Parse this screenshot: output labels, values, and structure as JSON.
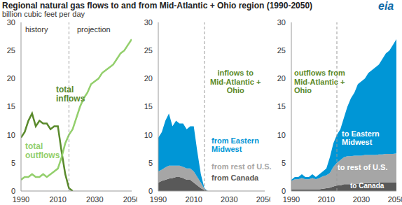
{
  "title": "Regional natural gas flows to and from Mid-Atlantic + Ohio region (1990-2050)",
  "subtitle": "billion cubic feet per day",
  "logo": "eia",
  "chart_data": [
    {
      "type": "line",
      "x": [
        1990,
        1992,
        1994,
        1996,
        1998,
        2000,
        2002,
        2004,
        2006,
        2008,
        2010,
        2012,
        2014,
        2016,
        2018,
        2020,
        2022,
        2024,
        2026,
        2028,
        2030,
        2032,
        2034,
        2036,
        2038,
        2040,
        2042,
        2044,
        2046,
        2048,
        2050
      ],
      "xlim": [
        1990,
        2050
      ],
      "xticks": [
        1990,
        2010,
        2030,
        2050
      ],
      "ylim": [
        0,
        30
      ],
      "yticks": [
        0,
        5,
        10,
        15,
        20,
        25,
        30
      ],
      "history_end": 2016,
      "annotations": [
        "history",
        "projection"
      ],
      "series": [
        {
          "name": "total\ninflows",
          "color": "#5a8a2c",
          "values": [
            9.5,
            10.5,
            12.5,
            13.8,
            11.5,
            12.5,
            12,
            12,
            11,
            11.5,
            11.5,
            7,
            3,
            0.5,
            0,
            null,
            null,
            null,
            null,
            null,
            null,
            null,
            null,
            null,
            null,
            null,
            null,
            null,
            null,
            null,
            null
          ]
        },
        {
          "name": "total\noutflows",
          "color": "#93cf6c",
          "values": [
            2,
            2.5,
            2.5,
            3,
            2.5,
            2.5,
            3,
            2.5,
            3,
            3.5,
            4,
            6,
            8.5,
            10,
            11,
            13,
            15,
            16.5,
            17.5,
            19,
            19.5,
            20,
            21,
            21.5,
            22,
            22.5,
            23.5,
            24.5,
            25,
            26,
            27
          ]
        }
      ]
    },
    {
      "type": "area",
      "stacked": true,
      "x": [
        1990,
        1992,
        1994,
        1996,
        1998,
        2000,
        2002,
        2004,
        2006,
        2008,
        2010,
        2012,
        2014,
        2016,
        2018,
        2020,
        2022,
        2024,
        2026,
        2028,
        2030,
        2032,
        2034,
        2036,
        2038,
        2040,
        2042,
        2044,
        2046,
        2048,
        2050
      ],
      "xlim": [
        1990,
        2050
      ],
      "xticks": [
        1990,
        2010,
        2030,
        2050
      ],
      "ylim": [
        0,
        30
      ],
      "yticks": [
        0,
        5,
        10,
        15,
        20,
        25,
        30
      ],
      "history_end": 2016,
      "annotations": [
        "inflows to\nMid-Atlantic +\nOhio"
      ],
      "series": [
        {
          "name": "from Canada",
          "color": "#595959",
          "values": [
            1.5,
            1.8,
            2,
            2.2,
            2.3,
            2.5,
            2.5,
            2.3,
            2,
            2,
            1.5,
            1,
            0.5,
            0.2,
            0,
            0,
            0,
            0,
            0,
            0,
            0,
            0,
            0,
            0,
            0,
            0,
            0,
            0,
            0,
            0,
            0
          ]
        },
        {
          "name": "from rest of U.S.",
          "color": "#a6a6a6",
          "values": [
            2,
            2,
            2.2,
            2.3,
            2.2,
            2,
            2,
            2,
            2,
            2,
            2,
            1.5,
            1,
            0.2,
            0,
            0,
            0,
            0,
            0,
            0,
            0,
            0,
            0,
            0,
            0,
            0,
            0,
            0,
            0,
            0,
            0
          ]
        },
        {
          "name": "from Eastern\nMidwest",
          "color": "#0096d6",
          "values": [
            6,
            6.7,
            8.3,
            9.3,
            7,
            8,
            7.5,
            7.7,
            7,
            7.5,
            8,
            4.5,
            1.5,
            0.1,
            0,
            0,
            0,
            0,
            0,
            0,
            0,
            0,
            0,
            0,
            0,
            0,
            0,
            0,
            0,
            0,
            0
          ]
        }
      ]
    },
    {
      "type": "area",
      "stacked": true,
      "x": [
        1990,
        1992,
        1994,
        1996,
        1998,
        2000,
        2002,
        2004,
        2006,
        2008,
        2010,
        2012,
        2014,
        2016,
        2018,
        2020,
        2022,
        2024,
        2026,
        2028,
        2030,
        2032,
        2034,
        2036,
        2038,
        2040,
        2042,
        2044,
        2046,
        2048,
        2050
      ],
      "xlim": [
        1990,
        2050
      ],
      "xticks": [
        1990,
        2010,
        2030,
        2050
      ],
      "ylim": [
        0,
        30
      ],
      "yticks": [
        0,
        5,
        10,
        15,
        20,
        25,
        30
      ],
      "history_end": 2016,
      "annotations": [
        "outflows from\nMid-Atlantic +\nOhio"
      ],
      "series": [
        {
          "name": "to Canada",
          "color": "#595959",
          "values": [
            0.3,
            0.3,
            0.3,
            0.3,
            0.3,
            0.3,
            0.3,
            0.3,
            0.3,
            0.4,
            0.5,
            0.6,
            0.8,
            1,
            1,
            1.2,
            1.2,
            1.2,
            1.3,
            1.3,
            1.3,
            1.4,
            1.4,
            1.4,
            1.4,
            1.5,
            1.5,
            1.5,
            1.5,
            1.5,
            1.5
          ]
        },
        {
          "name": "to rest of U.S.",
          "color": "#a6a6a6",
          "values": [
            1.5,
            1.8,
            1.8,
            2,
            1.8,
            1.8,
            2,
            1.8,
            2,
            2.2,
            2.3,
            2.6,
            3.5,
            4,
            4.5,
            4.8,
            5,
            5,
            5,
            5,
            5,
            5,
            5,
            5,
            5,
            5,
            5,
            5.1,
            5.1,
            5.1,
            5.2
          ]
        },
        {
          "name": "to Eastern\nMidwest",
          "color": "#0096d6",
          "values": [
            0.2,
            0.4,
            0.4,
            0.7,
            0.4,
            0.4,
            0.7,
            0.4,
            0.7,
            0.9,
            1.2,
            2.8,
            4.2,
            5,
            5.5,
            7,
            8.8,
            10.3,
            11.2,
            12.7,
            13.2,
            13.6,
            14.6,
            15.1,
            15.6,
            16,
            17,
            17.9,
            18.4,
            19.4,
            20.3
          ]
        }
      ]
    }
  ]
}
